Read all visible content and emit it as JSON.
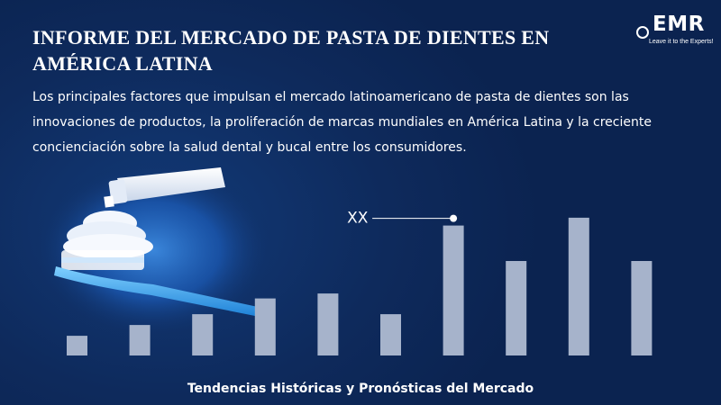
{
  "header": {
    "title": "INFORME DEL MERCADO DE PASTA DE DIENTES EN AMÉRICA LATINA",
    "description": "Los principales factores que impulsan el mercado latinoamericano de pasta de dientes son las innovaciones de productos, la proliferación de marcas mundiales en América Latina y la creciente concienciación sobre la salud dental y bucal entre los consumidores."
  },
  "logo": {
    "text": "EMR",
    "tagline": "Leave it to the Experts!"
  },
  "chart_data": {
    "type": "bar",
    "values": [
      1.0,
      1.55,
      2.1,
      2.9,
      3.15,
      2.1,
      6.6,
      4.8,
      7.0,
      4.8
    ],
    "annotation": {
      "text": "XX",
      "bar_index": 6
    },
    "ylim": [
      0,
      8
    ],
    "bar_color": "#a6b3cb",
    "grid": false,
    "legend": "none"
  },
  "footer": {
    "caption": "Tendencias Históricas y Pronósticas del Mercado"
  },
  "colors": {
    "background": "#0e2a5c",
    "text": "#ffffff",
    "bar": "#a6b3cb"
  }
}
